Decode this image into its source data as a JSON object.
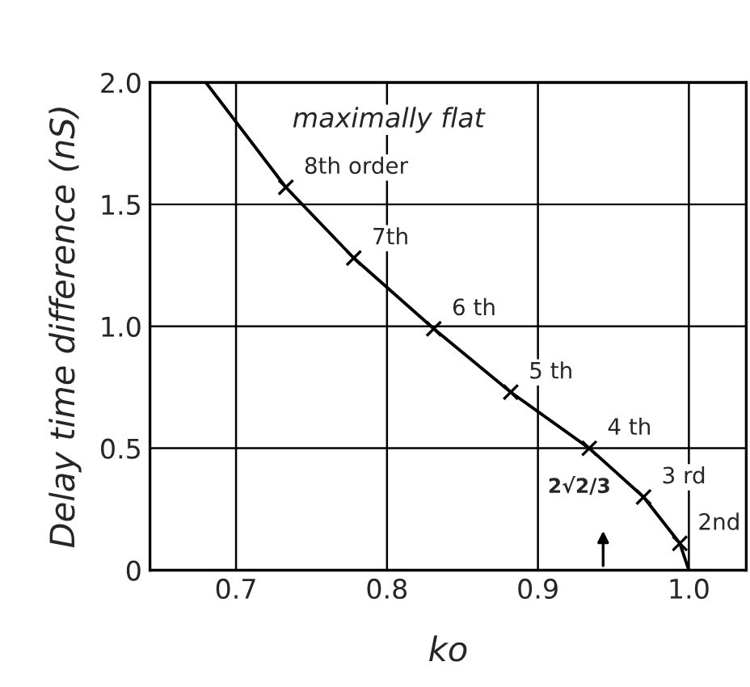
{
  "chart_data": {
    "type": "line",
    "xlabel": "ko",
    "ylabel": "Delay time difference (nS)",
    "series": [
      {
        "color": "#000000",
        "marker": "none",
        "x": [
          0.68,
          0.733,
          0.778,
          0.831,
          0.882,
          0.934,
          0.97,
          0.994,
          1.0
        ],
        "values": [
          2.0,
          1.57,
          1.28,
          0.99,
          0.73,
          0.5,
          0.3,
          0.11,
          0
        ]
      },
      {
        "type": "scatter",
        "color": "#000000",
        "marker": "cross",
        "x": [
          0.733,
          0.778,
          0.831,
          0.882,
          0.934,
          0.97,
          0.994
        ],
        "values": [
          1.57,
          1.28,
          0.99,
          0.73,
          0.5,
          0.3,
          0.11
        ]
      }
    ],
    "annotations": [
      "maximally flat",
      {
        "text": "8th order",
        "x": 0.733,
        "y": 1.57
      },
      {
        "text": "7th",
        "x": 0.778,
        "y": 1.28
      },
      {
        "text": "6 th",
        "x": 0.831,
        "y": 0.99
      },
      {
        "text": "5 th",
        "x": 0.882,
        "y": 0.73
      },
      {
        "text": "4 th",
        "x": 0.934,
        "y": 0.5
      },
      {
        "text": "3 rd",
        "x": 0.97,
        "y": 0.3
      },
      {
        "text": "2nd",
        "x": 0.994,
        "y": 0.11
      },
      "2√2/3"
    ],
    "xlim": [
      0.643,
      1.038
    ],
    "ylim": [
      0,
      2.0
    ],
    "xticks": [
      0.7,
      0.8,
      0.9,
      {
        "value": 1.0,
        "label": "1.0"
      }
    ],
    "yticks": [
      0,
      0.5,
      {
        "value": 1.0,
        "label": "1.0"
      },
      1.5,
      {
        "value": 2.0,
        "label": "2.0"
      }
    ],
    "grid": true,
    "line_style": "solid"
  }
}
